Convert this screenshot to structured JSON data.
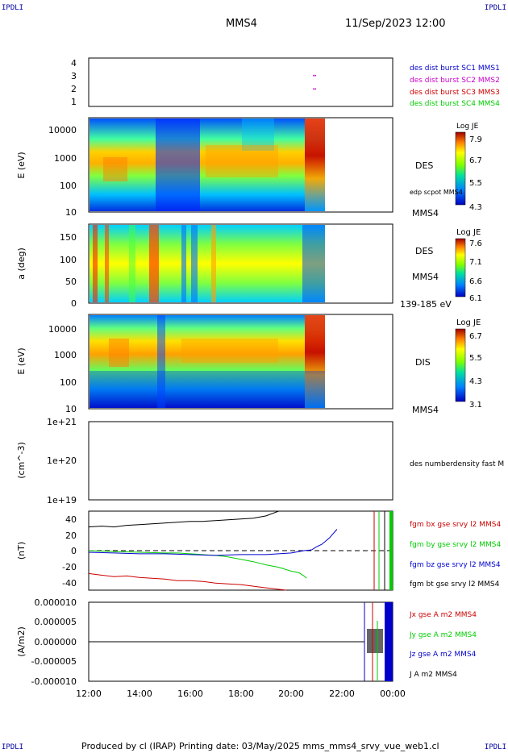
{
  "page": {
    "corner_labels": [
      "IPDLI",
      "IPDLI",
      "IPDLI",
      "IPDLI"
    ],
    "spacecraft": "MMS4",
    "datetime": "11/Sep/2023 12:00",
    "footer": "Produced by cl (IRAP)   Printing date: 03/May/2025   mms_mms4_srvy_vue_web1.cl"
  },
  "colors": {
    "blue": "#0000cc",
    "magenta": "#cc00cc",
    "red": "#cc0000",
    "green": "#00cc00",
    "black": "#000000"
  },
  "chart_data": [
    {
      "id": "panel1",
      "type": "scatter",
      "yticks": [
        "4",
        "3",
        "2",
        "1"
      ],
      "ylim": [
        0.7,
        4.3
      ],
      "legend": [
        {
          "label": "des dist burst SC1 MMS1",
          "color": "#0000cc"
        },
        {
          "label": "des dist burst SC2 MMS2",
          "color": "#cc00cc"
        },
        {
          "label": "des dist burst SC3 MMS3",
          "color": "#cc0000"
        },
        {
          "label": "des dist burst SC4 MMS4",
          "color": "#00cc00"
        }
      ],
      "series": [
        {
          "values": [
            [
              20.88,
              3.0
            ],
            [
              20.95,
              3.0
            ],
            [
              20.88,
              2.0
            ],
            [
              20.95,
              2.0
            ]
          ],
          "color": "#cc00cc"
        }
      ]
    },
    {
      "id": "panel2",
      "type": "heatmap",
      "ylabel": "E (eV)",
      "yticks": [
        "10000",
        "1000",
        "100",
        "10"
      ],
      "species": "DES",
      "sc": "MMS4",
      "overlay_label": "edp scpot MMS4",
      "colorbar": {
        "title": "Log JE",
        "ticks": [
          "7.9",
          "6.7",
          "5.5",
          "4.3"
        ]
      }
    },
    {
      "id": "panel3",
      "type": "heatmap",
      "ylabel": "a (deg)",
      "yticks": [
        "150",
        "100",
        "50",
        "0"
      ],
      "species": "DES",
      "sc": "MMS4",
      "range_label": "139-185 eV",
      "colorbar": {
        "title": "Log JE",
        "ticks": [
          "7.6",
          "7.1",
          "6.6",
          "6.1"
        ]
      }
    },
    {
      "id": "panel4",
      "type": "heatmap",
      "ylabel": "E (eV)",
      "yticks": [
        "10000",
        "1000",
        "100",
        "10"
      ],
      "species": "DIS",
      "sc": "MMS4",
      "colorbar": {
        "title": "Log JE",
        "ticks": [
          "6.7",
          "5.5",
          "4.3",
          "3.1"
        ]
      }
    },
    {
      "id": "panel5",
      "type": "line",
      "ylabel": "(cm^-3)",
      "yticks": [
        "1e+21",
        "1e+20",
        "1e+19"
      ],
      "legend": [
        {
          "label": "des numberdensity fast M",
          "color": "#000000"
        }
      ]
    },
    {
      "id": "panel6",
      "type": "line",
      "ylabel": "(nT)",
      "yticks": [
        "40",
        "20",
        "0",
        "-20",
        "-40"
      ],
      "ylim": [
        -50,
        50
      ],
      "legend": [
        {
          "label": "fgm bx gse srvy l2 MMS4",
          "color": "#cc0000"
        },
        {
          "label": "fgm by gse srvy l2 MMS4",
          "color": "#00cc00"
        },
        {
          "label": "fgm bz gse srvy l2 MMS4",
          "color": "#0000cc"
        },
        {
          "label": "fgm bt gse srvy l2 MMS4",
          "color": "#000000"
        }
      ],
      "series": [
        {
          "color": "#000000",
          "x": [
            12,
            12.5,
            13,
            13.5,
            14,
            14.5,
            15,
            15.5,
            16,
            16.5,
            17,
            17.5,
            18,
            18.5,
            19,
            19.5
          ],
          "y": [
            30,
            31,
            30,
            32,
            33,
            34,
            35,
            36,
            37,
            37,
            38,
            39,
            40,
            41,
            44,
            50
          ]
        },
        {
          "color": "#cc0000",
          "x": [
            12,
            12.5,
            13,
            13.5,
            14,
            14.5,
            15,
            15.5,
            16,
            16.5,
            17,
            17.5,
            18,
            18.5,
            19,
            19.5,
            19.8
          ],
          "y": [
            -29,
            -31,
            -33,
            -32,
            -34,
            -35,
            -36,
            -38,
            -38,
            -39,
            -41,
            -42,
            -43,
            -45,
            -47,
            -49,
            -50
          ]
        },
        {
          "color": "#00cc00",
          "x": [
            12,
            13,
            14,
            15,
            15.5,
            16,
            16.5,
            17,
            17.5,
            18,
            18.5,
            19,
            19.5,
            20,
            20.3,
            20.5,
            20.6
          ],
          "y": [
            0,
            -1,
            -2,
            -3,
            -3,
            -4,
            -5,
            -6,
            -8,
            -11,
            -14,
            -18,
            -21,
            -26,
            -28,
            -32,
            -35
          ]
        },
        {
          "color": "#0000cc",
          "x": [
            12,
            13,
            14,
            15,
            16,
            17,
            18,
            19,
            19.5,
            20,
            20.5,
            20.8,
            21,
            21.2,
            21.5,
            21.8
          ],
          "y": [
            -2,
            -3,
            -4,
            -4,
            -5,
            -6,
            -5,
            -5,
            -4,
            -3,
            0,
            1,
            5,
            8,
            16,
            27
          ]
        }
      ]
    },
    {
      "id": "panel7",
      "type": "line",
      "ylabel": "(A/m2)",
      "yticks": [
        "0.000010",
        "0.000005",
        "0.000000",
        "-0.000005",
        "-0.000010"
      ],
      "ylim": [
        -1e-05,
        1e-05
      ],
      "legend": [
        {
          "label": "Jx gse A m2 MMS4",
          "color": "#cc0000"
        },
        {
          "label": "Jy gse A m2 MMS4",
          "color": "#00cc00"
        },
        {
          "label": "Jz gse A m2 MMS4",
          "color": "#0000cc"
        },
        {
          "label": "J A m2 MMS4",
          "color": "#000000"
        }
      ]
    }
  ],
  "xaxis": {
    "ticks": [
      "12:00",
      "14:00",
      "16:00",
      "18:00",
      "20:00",
      "22:00",
      "00:00"
    ],
    "xlim": [
      12,
      24
    ]
  }
}
